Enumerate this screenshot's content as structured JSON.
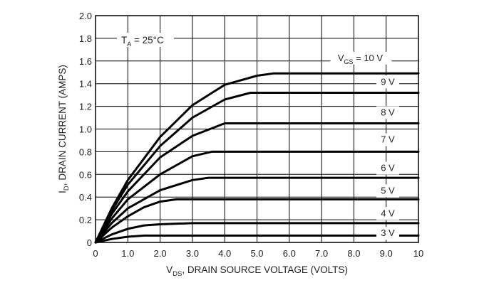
{
  "chart_data": {
    "type": "line",
    "title": "",
    "annotation": {
      "main": "T",
      "sub": "A",
      "rest": " = 25°C"
    },
    "xlabel": {
      "main": "V",
      "sub": "DS",
      "rest": ", DRAIN SOURCE VOLTAGE (VOLTS)"
    },
    "ylabel": {
      "main": "I",
      "sub": "D",
      "rest": ", DRAIN CURRENT (AMPS)"
    },
    "xlim": [
      0,
      10
    ],
    "ylim": [
      0,
      2.0
    ],
    "xticks": [
      0,
      1,
      2,
      3,
      4,
      5,
      6,
      7,
      8,
      9,
      10
    ],
    "xtick_labels": [
      "0",
      "1.0",
      "2.0",
      "3.0",
      "4.0",
      "5.0",
      "6.0",
      "7.0",
      "8.0",
      "9.0",
      "10"
    ],
    "yticks": [
      0,
      0.2,
      0.4,
      0.6,
      0.8,
      1.0,
      1.2,
      1.4,
      1.6,
      1.8,
      2.0
    ],
    "ytick_labels": [
      "0",
      "0.2",
      "0.4",
      "0.6",
      "0.8",
      "1.0",
      "1.2",
      "1.4",
      "1.6",
      "1.8",
      "2.0"
    ],
    "grid": true,
    "series": [
      {
        "name": "10 V",
        "label_main": "V",
        "label_sub": "GS",
        "label_rest": " = 10 V",
        "label_x": 8.2,
        "label_y": 1.6,
        "points": [
          [
            0,
            0
          ],
          [
            0.5,
            0.3
          ],
          [
            1,
            0.55
          ],
          [
            2,
            0.93
          ],
          [
            3,
            1.21
          ],
          [
            4,
            1.39
          ],
          [
            5,
            1.47
          ],
          [
            5.5,
            1.49
          ],
          [
            10,
            1.49
          ]
        ]
      },
      {
        "name": "9 V",
        "label": "9 V",
        "label_x": 9.05,
        "label_y": 1.39,
        "points": [
          [
            0,
            0
          ],
          [
            0.5,
            0.28
          ],
          [
            1,
            0.51
          ],
          [
            2,
            0.85
          ],
          [
            3,
            1.1
          ],
          [
            4,
            1.26
          ],
          [
            4.8,
            1.32
          ],
          [
            10,
            1.32
          ]
        ]
      },
      {
        "name": "8 V",
        "label": "8 V",
        "label_x": 9.05,
        "label_y": 1.12,
        "points": [
          [
            0,
            0
          ],
          [
            0.5,
            0.25
          ],
          [
            1,
            0.45
          ],
          [
            2,
            0.75
          ],
          [
            3,
            0.94
          ],
          [
            4,
            1.05
          ],
          [
            10,
            1.05
          ]
        ]
      },
      {
        "name": "7 V",
        "label": "7 V",
        "label_x": 9.05,
        "label_y": 0.88,
        "points": [
          [
            0,
            0
          ],
          [
            0.5,
            0.21
          ],
          [
            1,
            0.38
          ],
          [
            2,
            0.6
          ],
          [
            3,
            0.76
          ],
          [
            3.6,
            0.8
          ],
          [
            10,
            0.8
          ]
        ]
      },
      {
        "name": "6 V",
        "label": "6 V",
        "label_x": 9.05,
        "label_y": 0.63,
        "points": [
          [
            0,
            0
          ],
          [
            0.5,
            0.17
          ],
          [
            1,
            0.3
          ],
          [
            2,
            0.46
          ],
          [
            3,
            0.55
          ],
          [
            3.5,
            0.57
          ],
          [
            10,
            0.57
          ]
        ]
      },
      {
        "name": "5 V",
        "label": "5 V",
        "label_x": 9.05,
        "label_y": 0.43,
        "points": [
          [
            0,
            0
          ],
          [
            0.5,
            0.13
          ],
          [
            1,
            0.23
          ],
          [
            1.5,
            0.31
          ],
          [
            2,
            0.36
          ],
          [
            2.5,
            0.38
          ],
          [
            10,
            0.38
          ]
        ]
      },
      {
        "name": "4 V",
        "label": "4 V",
        "label_x": 9.05,
        "label_y": 0.23,
        "points": [
          [
            0,
            0
          ],
          [
            0.5,
            0.07
          ],
          [
            1,
            0.12
          ],
          [
            1.5,
            0.15
          ],
          [
            2,
            0.16
          ],
          [
            3,
            0.17
          ],
          [
            10,
            0.17
          ]
        ]
      },
      {
        "name": "3 V",
        "label": "3 V",
        "label_x": 9.05,
        "label_y": 0.055,
        "points": [
          [
            0,
            0
          ],
          [
            0.5,
            0.03
          ],
          [
            1,
            0.05
          ],
          [
            1.5,
            0.06
          ],
          [
            10,
            0.06
          ]
        ]
      }
    ]
  }
}
